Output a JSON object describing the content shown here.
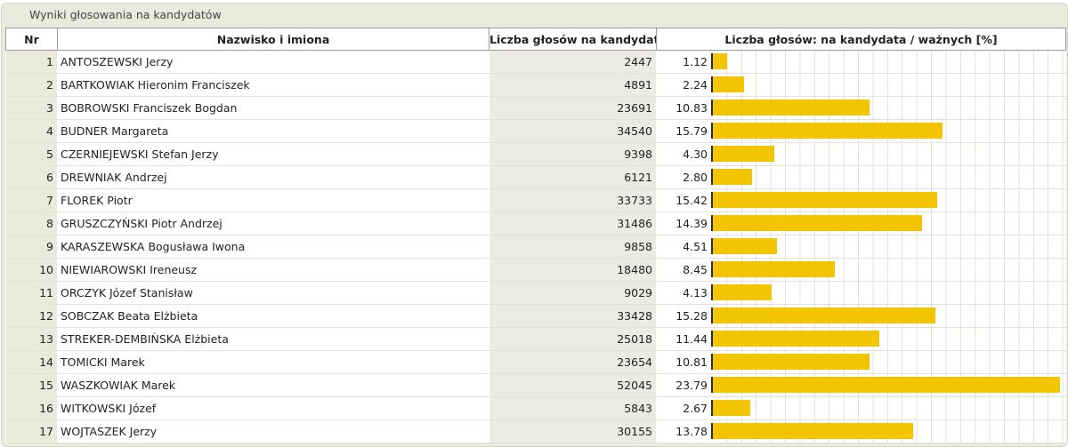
{
  "caption": "Wyniki głosowania na kandydatów",
  "headers": {
    "nr": "Nr",
    "name": "Nazwisko i imiona",
    "votes": "Liczba głosów na kandydata",
    "pct": "Liczba głosów: na kandydata / ważnych [%]"
  },
  "colors": {
    "bar": "#f3c500",
    "bar_edge": "#2b2b2b"
  },
  "scale_max_pct": 23.79,
  "rows": [
    {
      "nr": "1",
      "name": "ANTOSZEWSKI Jerzy",
      "votes": "2447",
      "pct": "1.12",
      "value": 1.12
    },
    {
      "nr": "2",
      "name": "BARTKOWIAK Hieronim Franciszek",
      "votes": "4891",
      "pct": "2.24",
      "value": 2.24
    },
    {
      "nr": "3",
      "name": "BOBROWSKI Franciszek Bogdan",
      "votes": "23691",
      "pct": "10.83",
      "value": 10.83
    },
    {
      "nr": "4",
      "name": "BUDNER Margareta",
      "votes": "34540",
      "pct": "15.79",
      "value": 15.79
    },
    {
      "nr": "5",
      "name": "CZERNIEJEWSKI Stefan Jerzy",
      "votes": "9398",
      "pct": "4.30",
      "value": 4.3
    },
    {
      "nr": "6",
      "name": "DREWNIAK Andrzej",
      "votes": "6121",
      "pct": "2.80",
      "value": 2.8
    },
    {
      "nr": "7",
      "name": "FLOREK Piotr",
      "votes": "33733",
      "pct": "15.42",
      "value": 15.42
    },
    {
      "nr": "8",
      "name": "GRUSZCZYŃSKI Piotr Andrzej",
      "votes": "31486",
      "pct": "14.39",
      "value": 14.39
    },
    {
      "nr": "9",
      "name": "KARASZEWSKA Bogusława Iwona",
      "votes": "9858",
      "pct": "4.51",
      "value": 4.51
    },
    {
      "nr": "10",
      "name": "NIEWIAROWSKI Ireneusz",
      "votes": "18480",
      "pct": "8.45",
      "value": 8.45
    },
    {
      "nr": "11",
      "name": "ORCZYK Józef Stanisław",
      "votes": "9029",
      "pct": "4.13",
      "value": 4.13
    },
    {
      "nr": "12",
      "name": "SOBCZAK Beata Elżbieta",
      "votes": "33428",
      "pct": "15.28",
      "value": 15.28
    },
    {
      "nr": "13",
      "name": "STREKER-DEMBIŃSKA Elżbieta",
      "votes": "25018",
      "pct": "11.44",
      "value": 11.44
    },
    {
      "nr": "14",
      "name": "TOMICKI Marek",
      "votes": "23654",
      "pct": "10.81",
      "value": 10.81
    },
    {
      "nr": "15",
      "name": "WASZKOWIAK Marek",
      "votes": "52045",
      "pct": "23.79",
      "value": 23.79
    },
    {
      "nr": "16",
      "name": "WITKOWSKI Józef",
      "votes": "5843",
      "pct": "2.67",
      "value": 2.67
    },
    {
      "nr": "17",
      "name": "WOJTASZEK Jerzy",
      "votes": "30155",
      "pct": "13.78",
      "value": 13.78
    }
  ]
}
